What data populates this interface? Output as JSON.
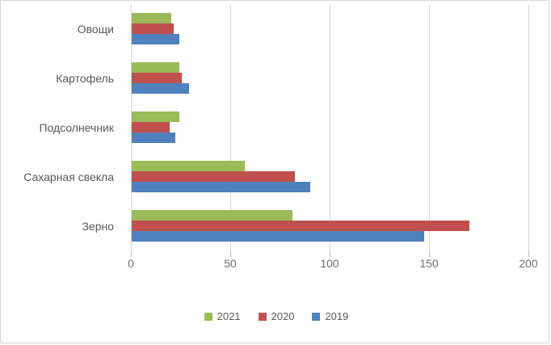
{
  "chart_data": {
    "type": "bar",
    "orientation": "horizontal",
    "title": "",
    "categories": [
      "Овощи",
      "Картофель",
      "Подсолнечник",
      "Сахарная свекла",
      "Зерно"
    ],
    "series": [
      {
        "name": "2021",
        "color": "#9BBB59",
        "values": [
          20,
          24,
          24,
          57,
          81
        ]
      },
      {
        "name": "2020",
        "color": "#C0504D",
        "values": [
          21,
          25,
          19,
          82,
          170
        ]
      },
      {
        "name": "2019",
        "color": "#4F81BD",
        "values": [
          24,
          29,
          22,
          90,
          147
        ]
      }
    ],
    "xlim": [
      0,
      200
    ],
    "xticks": [
      0,
      50,
      100,
      150,
      200
    ],
    "grid": "vertical-gridlines",
    "legend_position": "bottom",
    "colors": {
      "gridline": "#D9D9D9",
      "tick_text": "#6E6E6E",
      "category_text": "#595959",
      "chart_border": "#D7D7D7"
    }
  }
}
